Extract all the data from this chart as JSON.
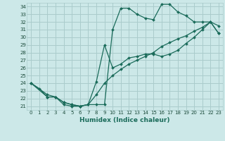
{
  "xlabel": "Humidex (Indice chaleur)",
  "bg_color": "#cce8e8",
  "grid_color": "#aacccc",
  "line_color": "#1a6b5a",
  "xlim": [
    -0.5,
    23.5
  ],
  "ylim": [
    20.5,
    34.5
  ],
  "xticks": [
    0,
    1,
    2,
    3,
    4,
    5,
    6,
    7,
    8,
    9,
    10,
    11,
    12,
    13,
    14,
    15,
    16,
    17,
    18,
    19,
    20,
    21,
    22,
    23
  ],
  "yticks": [
    21,
    22,
    23,
    24,
    25,
    26,
    27,
    28,
    29,
    30,
    31,
    32,
    33,
    34
  ],
  "curve1_x": [
    0,
    1,
    2,
    3,
    4,
    5,
    6,
    7,
    8,
    9,
    10,
    11,
    12,
    13,
    14,
    15,
    16,
    17,
    18,
    19,
    20,
    21,
    22,
    23
  ],
  "curve1_y": [
    24.0,
    23.3,
    22.2,
    22.2,
    21.2,
    21.0,
    21.0,
    21.2,
    21.2,
    21.2,
    31.0,
    33.8,
    33.8,
    33.0,
    32.5,
    32.3,
    34.3,
    34.3,
    33.3,
    32.8,
    32.0,
    32.0,
    32.0,
    30.5
  ],
  "curve2_x": [
    0,
    2,
    3,
    4,
    5,
    6,
    7,
    8,
    9,
    10,
    11,
    12,
    13,
    14,
    15,
    16,
    17,
    18,
    19,
    20,
    21,
    22,
    23
  ],
  "curve2_y": [
    24.0,
    22.2,
    22.2,
    21.5,
    21.2,
    21.0,
    21.2,
    22.5,
    24.0,
    25.0,
    25.8,
    26.5,
    27.0,
    27.5,
    28.0,
    28.8,
    29.3,
    29.8,
    30.2,
    30.8,
    31.3,
    32.0,
    30.5
  ],
  "curve3_x": [
    0,
    2,
    3,
    4,
    5,
    6,
    7,
    8,
    9,
    10,
    11,
    12,
    13,
    14,
    15,
    16,
    17,
    18,
    19,
    20,
    21,
    22,
    23
  ],
  "curve3_y": [
    24.0,
    22.5,
    22.2,
    21.5,
    21.2,
    21.0,
    21.2,
    24.2,
    29.0,
    26.0,
    26.5,
    27.3,
    27.5,
    27.8,
    27.8,
    27.5,
    27.8,
    28.3,
    29.2,
    30.0,
    31.0,
    32.0,
    31.5
  ]
}
